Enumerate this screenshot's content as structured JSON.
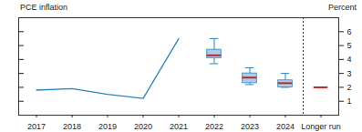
{
  "chart_data": {
    "type": "box",
    "title": "PCE inflation",
    "y_label": "Percent",
    "categories": [
      "2017",
      "2018",
      "2019",
      "2020",
      "2021",
      "2022",
      "2023",
      "2024",
      "Longer run"
    ],
    "actual": {
      "values": [
        1.8,
        1.9,
        1.5,
        1.2,
        5.5,
        null,
        null,
        null,
        null
      ],
      "color": "#2a86b9",
      "line_style": "solid"
    },
    "median": {
      "values": [
        null,
        null,
        null,
        null,
        null,
        4.3,
        2.7,
        2.3,
        2.0
      ],
      "color": "#c8202a"
    },
    "central_tendency": {
      "low": [
        null,
        null,
        null,
        null,
        null,
        4.1,
        2.3,
        2.0,
        null
      ],
      "high": [
        null,
        null,
        null,
        null,
        null,
        4.7,
        3.0,
        2.5,
        null
      ],
      "color": "#a8d0ec"
    },
    "range": {
      "low": [
        null,
        null,
        null,
        null,
        null,
        3.7,
        2.2,
        2.0,
        null
      ],
      "high": [
        null,
        null,
        null,
        null,
        null,
        5.5,
        3.4,
        3.0,
        null
      ],
      "color": "#2a86b9"
    },
    "ylim": [
      0,
      7
    ],
    "yticks": [
      1,
      2,
      3,
      4,
      5,
      6
    ],
    "grid": false
  }
}
